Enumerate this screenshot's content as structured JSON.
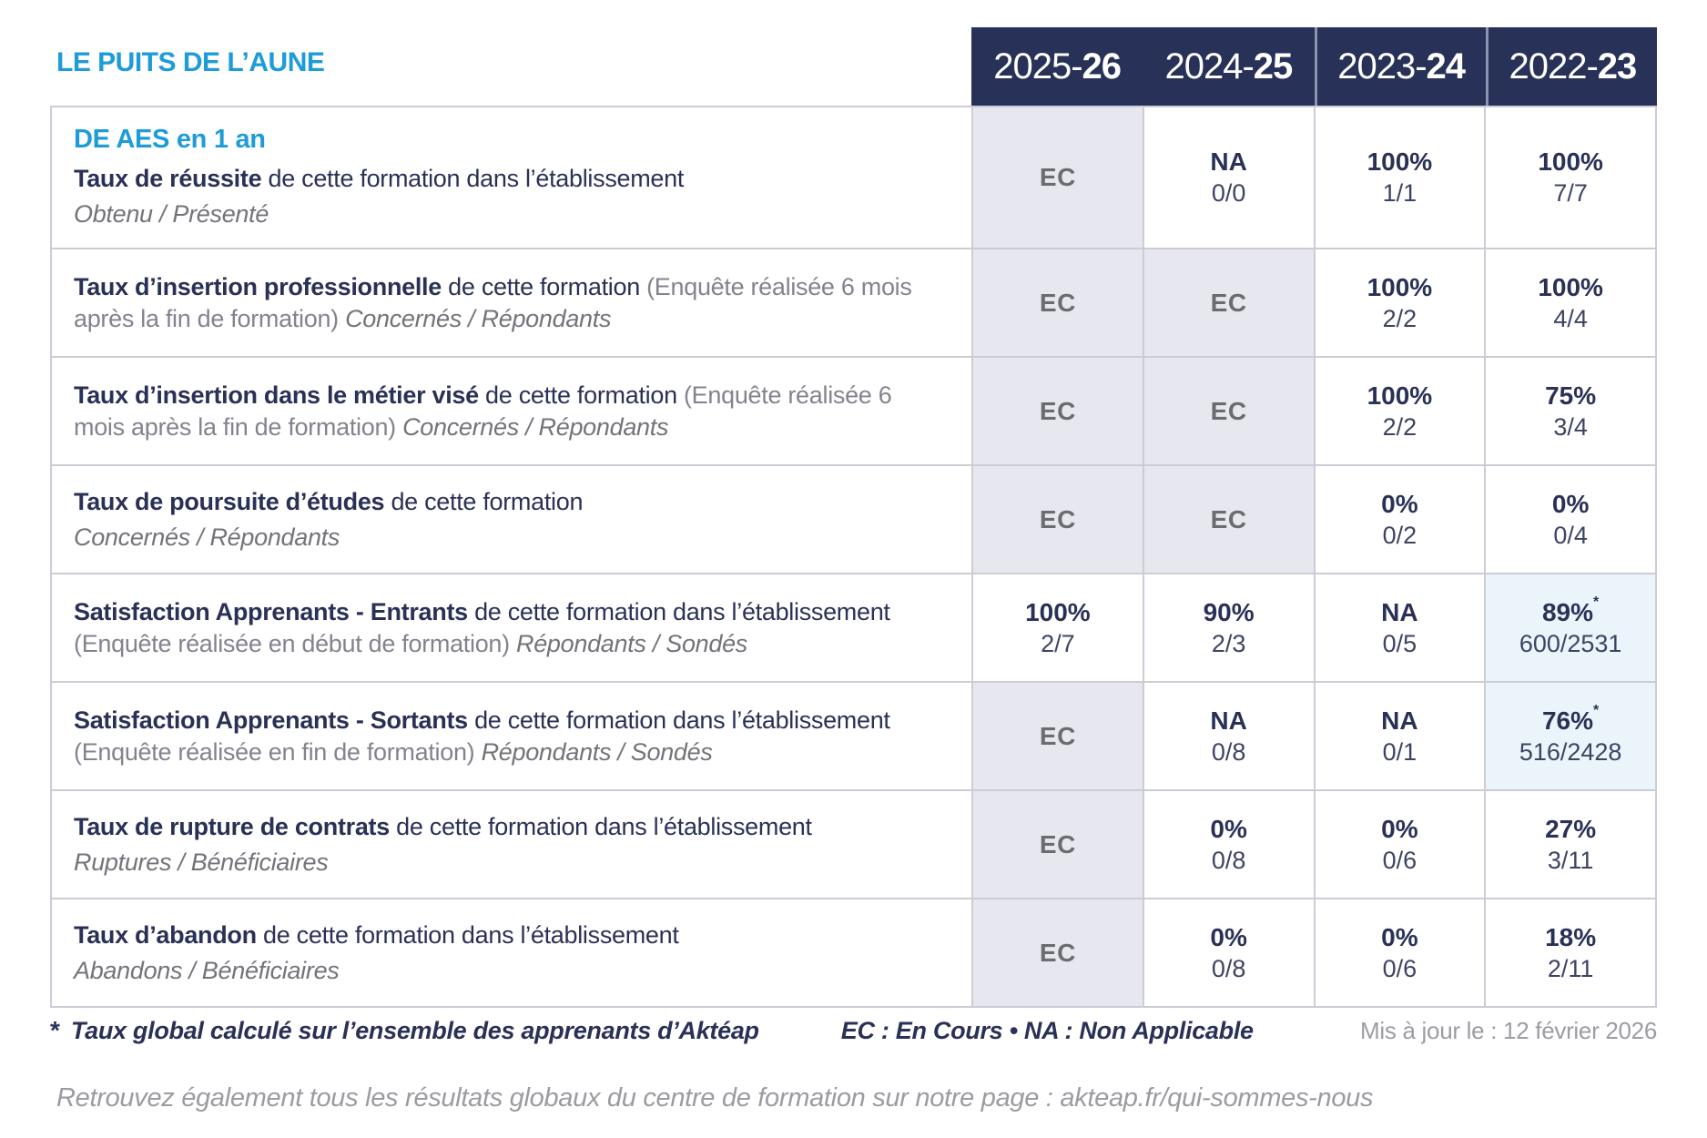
{
  "header": {
    "title": "LE PUITS DE L’AUNE",
    "years": [
      {
        "prefix": "2025-",
        "bold": "26"
      },
      {
        "prefix": "2024-",
        "bold": "25"
      },
      {
        "prefix": "2023-",
        "bold": "24"
      },
      {
        "prefix": "2022-",
        "bold": "23"
      }
    ]
  },
  "table": {
    "star_symbol": "*",
    "rows": [
      {
        "section_title": "DE AES en 1 an",
        "bold": "Taux de réussite",
        "regular": " de cette formation dans l’établissement",
        "note": "",
        "sub": "Obtenu / Présenté",
        "sub_block": true,
        "cells": [
          {
            "main": "EC",
            "type": "ec"
          },
          {
            "main": "NA",
            "sub": "0/0"
          },
          {
            "main": "100%",
            "sub": "1/1"
          },
          {
            "main": "100%",
            "sub": "7/7"
          }
        ]
      },
      {
        "bold": "Taux d’insertion professionnelle",
        "regular": " de cette formation ",
        "note": "(Enquête réalisée 6 mois après la fin de formation) ",
        "sub": "Concernés / Répondants",
        "sub_block": false,
        "cells": [
          {
            "main": "EC",
            "type": "ec"
          },
          {
            "main": "EC",
            "type": "ec"
          },
          {
            "main": "100%",
            "sub": "2/2"
          },
          {
            "main": "100%",
            "sub": "4/4"
          }
        ]
      },
      {
        "bold": "Taux d’insertion dans le métier visé",
        "regular": " de cette formation ",
        "note": "(Enquête réalisée 6 mois après la fin de formation) ",
        "sub": "Concernés / Répondants",
        "sub_block": false,
        "cells": [
          {
            "main": "EC",
            "type": "ec"
          },
          {
            "main": "EC",
            "type": "ec"
          },
          {
            "main": "100%",
            "sub": "2/2"
          },
          {
            "main": "75%",
            "sub": "3/4"
          }
        ]
      },
      {
        "bold": "Taux de poursuite d’études",
        "regular": " de cette formation",
        "note": "",
        "sub": "Concernés / Répondants",
        "sub_block": true,
        "cells": [
          {
            "main": "EC",
            "type": "ec"
          },
          {
            "main": "EC",
            "type": "ec"
          },
          {
            "main": "0%",
            "sub": "0/2"
          },
          {
            "main": "0%",
            "sub": "0/4"
          }
        ]
      },
      {
        "bold": "Satisfaction Apprenants - Entrants",
        "regular": " de cette formation dans l’établissement ",
        "note": "(Enquête réalisée en début de formation) ",
        "sub": "Répondants / Sondés",
        "sub_block": false,
        "cells": [
          {
            "main": "100%",
            "sub": "2/7"
          },
          {
            "main": "90%",
            "sub": "2/3"
          },
          {
            "main": "NA",
            "sub": "0/5"
          },
          {
            "main": "89%",
            "sub": "600/2531",
            "star": true
          }
        ]
      },
      {
        "bold": "Satisfaction Apprenants - Sortants",
        "regular": " de cette formation dans l’établissement ",
        "note": "(Enquête réalisée en fin de formation) ",
        "sub": "Répondants / Sondés",
        "sub_block": false,
        "cells": [
          {
            "main": "EC",
            "type": "ec"
          },
          {
            "main": "NA",
            "sub": "0/8"
          },
          {
            "main": "NA",
            "sub": "0/1"
          },
          {
            "main": "76%",
            "sub": "516/2428",
            "star": true
          }
        ]
      },
      {
        "bold": "Taux de rupture de contrats",
        "regular": " de cette formation dans l’établissement",
        "note": "",
        "sub": "Ruptures / Bénéficiaires",
        "sub_block": true,
        "cells": [
          {
            "main": "EC",
            "type": "ec"
          },
          {
            "main": "0%",
            "sub": "0/8"
          },
          {
            "main": "0%",
            "sub": "0/6"
          },
          {
            "main": "27%",
            "sub": "3/11"
          }
        ]
      },
      {
        "bold": "Taux d’abandon",
        "regular": " de cette formation dans l’établissement",
        "note": "",
        "sub": "Abandons / Bénéficiaires",
        "sub_block": true,
        "cells": [
          {
            "main": "EC",
            "type": "ec"
          },
          {
            "main": "0%",
            "sub": "0/8"
          },
          {
            "main": "0%",
            "sub": "0/6"
          },
          {
            "main": "18%",
            "sub": "2/11"
          }
        ]
      }
    ]
  },
  "footer": {
    "star": "*",
    "note": "Taux global calculé sur l’ensemble des apprenants d’Aktéap",
    "legend": "EC : En Cours  •  NA : Non Applicable",
    "updated": "Mis à jour le : 12 février 2026",
    "bottom": "Retrouvez également tous les résultats globaux du centre de formation sur notre page : akteap.fr/qui-sommes-nous"
  },
  "colors": {
    "navy": "#283157",
    "blue": "#1D9CD9",
    "ec_background": "#E7E7EF",
    "star_background": "#EBF4FA",
    "border": "#CCCCD7"
  }
}
